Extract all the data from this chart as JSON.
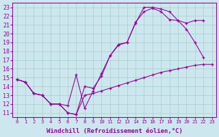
{
  "background_color": "#cce8ee",
  "grid_color": "#aacccc",
  "line_color": "#990099",
  "xlabel": "Windchill (Refroidissement éolien,°C)",
  "xlabel_fontsize": 6.5,
  "ytick_fontsize": 6,
  "xtick_fontsize": 5.2,
  "xlim": [
    -0.5,
    23.5
  ],
  "ylim": [
    10.5,
    23.5
  ],
  "yticks": [
    11,
    12,
    13,
    14,
    15,
    16,
    17,
    18,
    19,
    20,
    21,
    22,
    23
  ],
  "xticks": [
    0,
    1,
    2,
    3,
    4,
    5,
    6,
    7,
    8,
    9,
    10,
    11,
    12,
    13,
    14,
    15,
    16,
    17,
    18,
    19,
    20,
    21,
    22,
    23
  ],
  "curve_upper_x": [
    0,
    1,
    2,
    3,
    4,
    5,
    6,
    7,
    8,
    9,
    10,
    11,
    12,
    13,
    14,
    15,
    16,
    17,
    18,
    19,
    20,
    21,
    22
  ],
  "curve_upper_y": [
    14.8,
    14.5,
    13.2,
    13.0,
    12.0,
    12.0,
    11.8,
    15.3,
    11.5,
    13.5,
    15.5,
    17.5,
    18.8,
    19.0,
    21.2,
    23.0,
    23.0,
    22.8,
    22.5,
    21.5,
    21.2,
    21.5,
    21.5
  ],
  "curve_mid_x": [
    0,
    1,
    2,
    3,
    4,
    5,
    6,
    7,
    8,
    9,
    10,
    11,
    12,
    13,
    14,
    15,
    16,
    17,
    18,
    19,
    20,
    21,
    22
  ],
  "curve_mid_y": [
    14.8,
    14.5,
    13.2,
    13.0,
    12.0,
    12.0,
    11.0,
    10.8,
    14.0,
    13.8,
    15.2,
    17.5,
    18.7,
    19.0,
    21.3,
    22.5,
    22.9,
    22.5,
    21.6,
    21.5,
    20.5,
    19.0,
    17.3
  ],
  "curve_low_x": [
    0,
    1,
    2,
    3,
    4,
    5,
    6,
    7,
    8,
    9,
    10,
    11,
    12,
    13,
    14,
    15,
    16,
    17,
    18,
    19,
    20,
    21,
    22,
    23
  ],
  "curve_low_y": [
    14.8,
    14.5,
    13.2,
    13.0,
    12.0,
    12.0,
    11.0,
    10.8,
    13.0,
    13.2,
    13.5,
    13.8,
    14.1,
    14.4,
    14.7,
    15.0,
    15.3,
    15.6,
    15.8,
    16.0,
    16.2,
    16.4,
    16.5,
    16.5
  ]
}
